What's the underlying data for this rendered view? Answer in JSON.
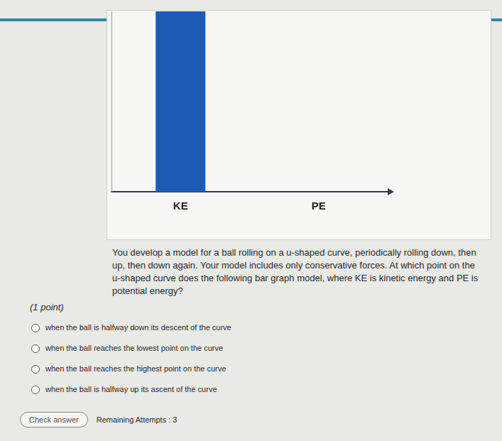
{
  "chart_data": {
    "type": "bar",
    "categories": [
      "KE",
      "PE"
    ],
    "values": [
      100,
      0
    ],
    "color": "#1c5cb8",
    "ylim": [
      0,
      100
    ],
    "yticks": [
      0,
      100
    ],
    "grid": false,
    "tick_labels": "x"
  },
  "question": "You develop a model for a ball rolling on a u-shaped curve, periodically rolling down, then up, then down again. Your model includes only conservative forces. At which point on the u-shaped curve does the following bar graph model, where KE is kinetic energy and PE is potential energy?",
  "points": "(1 point)",
  "options": [
    "when the ball is halfway down its descent of the curve",
    "when the ball reaches the lowest point on the curve",
    "when the ball reaches the highest point on the curve",
    "when the ball is halfway up its ascent of the curve"
  ],
  "button": "Check answer",
  "attempts": "Remaining Attempts : 3"
}
